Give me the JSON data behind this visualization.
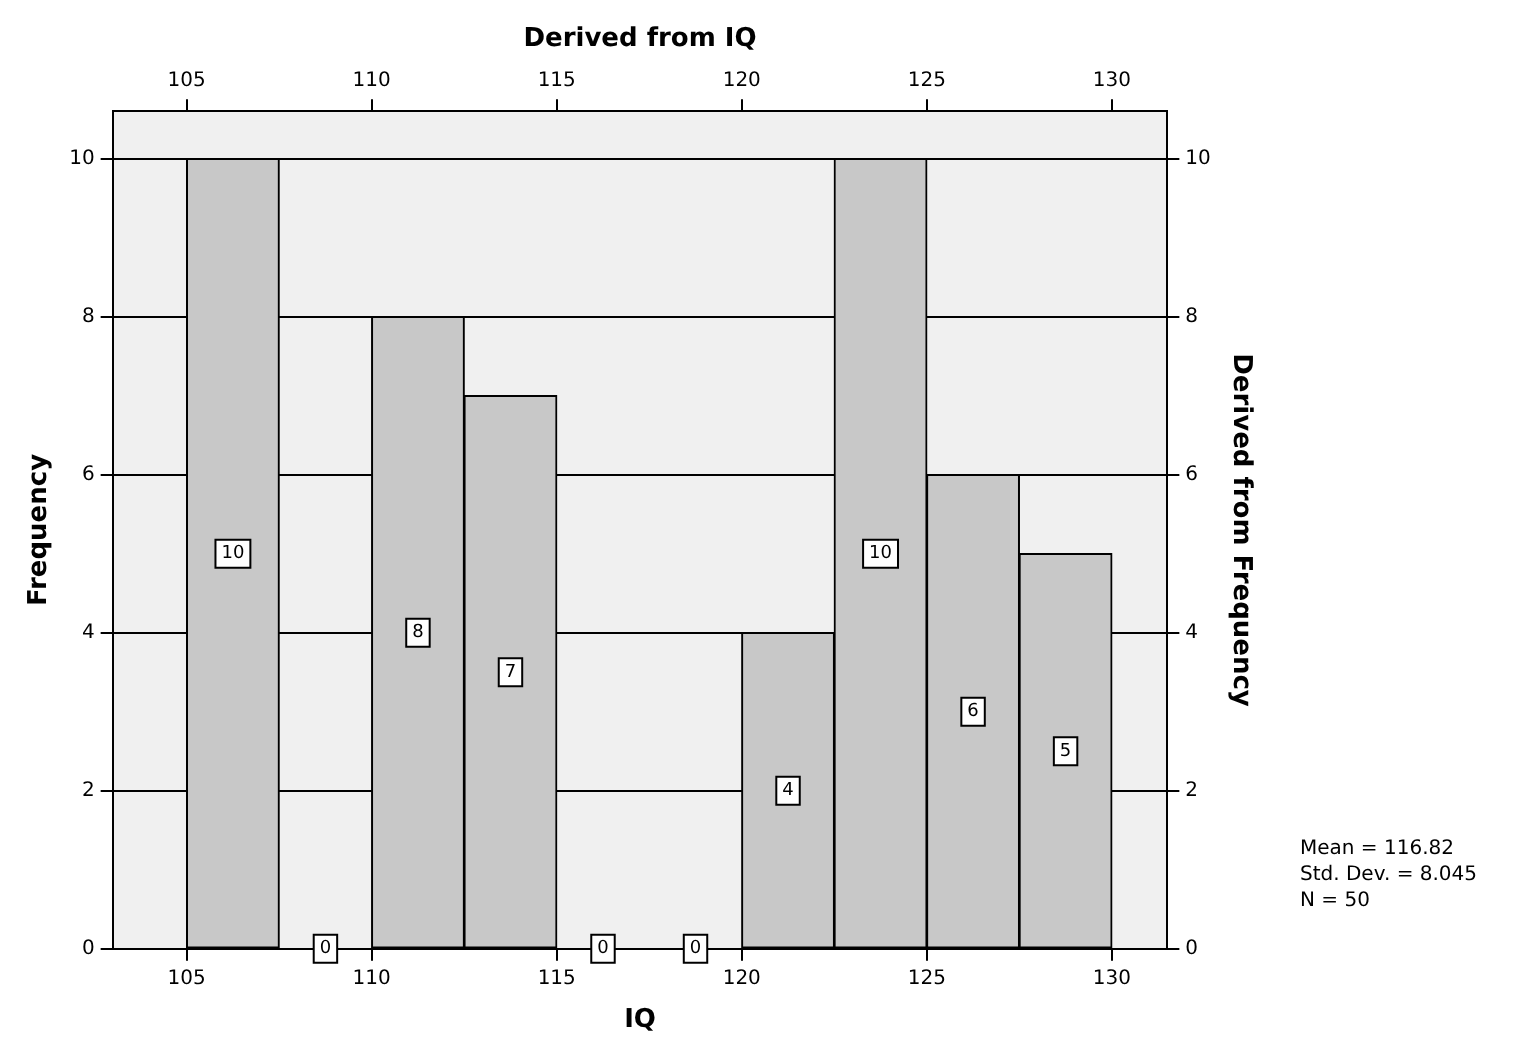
{
  "chart_data": {
    "type": "histogram",
    "xlabel": "IQ",
    "x2label": "Derived from IQ",
    "ylabel": "Frequency",
    "y2label": "Derived from Frequency",
    "bins": [
      105,
      107.5,
      110,
      112.5,
      115,
      117.5,
      120,
      122.5,
      125,
      127.5,
      130
    ],
    "values": [
      10,
      0,
      8,
      7,
      0,
      0,
      4,
      10,
      6,
      5
    ],
    "color": "#c8c8c8",
    "xlim": [
      103,
      131.5
    ],
    "xticks": [
      105,
      110,
      115,
      120,
      125,
      130
    ],
    "x2lim": [
      103,
      131.5
    ],
    "x2ticks": [
      105,
      110,
      115,
      120,
      125,
      130
    ],
    "ylim": [
      0,
      10.6
    ],
    "yticks": [
      0,
      2,
      4,
      6,
      8,
      10
    ],
    "y2lim": [
      0,
      10.6
    ],
    "y2ticks": [
      0,
      2,
      4,
      6,
      8,
      10
    ],
    "grid": "y",
    "data_labels": true,
    "annotations": [
      "Mean = 116.82",
      "Std. Dev. = 8.045",
      "N = 50"
    ]
  }
}
